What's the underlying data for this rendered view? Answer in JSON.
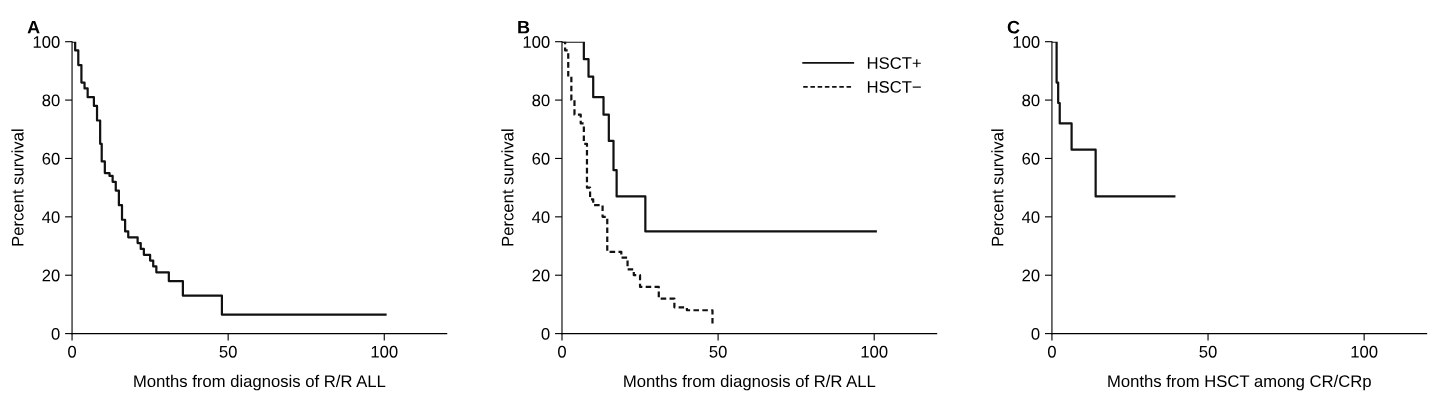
{
  "chart_data": [
    {
      "type": "step",
      "title": "A",
      "xlabel": "Months from diagnosis of R/R ALL",
      "ylabel": "Percent survival",
      "xlim": [
        0,
        120
      ],
      "xticks": [
        0,
        50,
        100
      ],
      "ylim": [
        0,
        100
      ],
      "yticks": [
        0,
        20,
        40,
        60,
        80,
        100
      ],
      "grid": false,
      "legend": false,
      "line_style": "solid",
      "series": [
        {
          "color": "#111111",
          "x": [
            0,
            1,
            2,
            3,
            4,
            5,
            7,
            8,
            9,
            9.5,
            10.5,
            12,
            13,
            14,
            15,
            16,
            17,
            18,
            20,
            21,
            22,
            23,
            25,
            26,
            27,
            30,
            31,
            35.5,
            48,
            100.4
          ],
          "values": [
            100,
            97,
            92,
            86,
            84,
            81,
            78,
            73,
            65,
            59,
            55,
            54,
            52,
            49,
            44,
            39,
            35,
            33,
            33,
            31,
            29,
            27,
            25,
            23,
            21,
            21,
            18,
            13,
            6.5,
            6.5
          ]
        }
      ]
    },
    {
      "type": "step",
      "title": "B",
      "xlabel": "Months from diagnosis of R/R ALL",
      "ylabel": "Percent survival",
      "xlim": [
        0,
        120
      ],
      "xticks": [
        0,
        50,
        100
      ],
      "ylim": [
        0,
        100
      ],
      "yticks": [
        0,
        20,
        40,
        60,
        80,
        100
      ],
      "grid": false,
      "legend": "top right",
      "line_style": "solid",
      "series": [
        {
          "name": "HSCT+",
          "color": "#111111",
          "line_style": "solid",
          "x": [
            0,
            7,
            8.5,
            10,
            13.3,
            15,
            16.5,
            17.5,
            26.7,
            100.5
          ],
          "values": [
            100,
            94,
            88,
            81,
            75,
            66,
            56,
            47,
            35,
            35
          ]
        },
        {
          "name": "HSCT−",
          "color": "#111111",
          "line_style": "dashed",
          "x": [
            0,
            1,
            2,
            3,
            4,
            6,
            7,
            8,
            9,
            10,
            13,
            14.5,
            19,
            21,
            23,
            25,
            30,
            31,
            35,
            36,
            40,
            48.2
          ],
          "values": [
            100,
            97,
            88,
            80,
            75,
            72,
            65,
            50,
            46,
            44,
            40,
            28,
            26,
            22,
            20,
            16,
            16,
            12,
            12,
            9,
            8,
            3
          ]
        }
      ]
    },
    {
      "type": "step",
      "title": "C",
      "xlabel": "Months from HSCT among CR/CRp",
      "ylabel": "Percent survival",
      "xlim": [
        0,
        120
      ],
      "xticks": [
        0,
        50,
        100
      ],
      "ylim": [
        0,
        100
      ],
      "yticks": [
        0,
        20,
        40,
        60,
        80,
        100
      ],
      "grid": false,
      "legend": false,
      "line_style": "solid",
      "series": [
        {
          "color": "#111111",
          "x": [
            0,
            1.5,
            2,
            2.5,
            6.3,
            14,
            39.2
          ],
          "values": [
            100,
            86,
            79,
            72,
            63,
            47,
            47
          ]
        }
      ]
    }
  ]
}
